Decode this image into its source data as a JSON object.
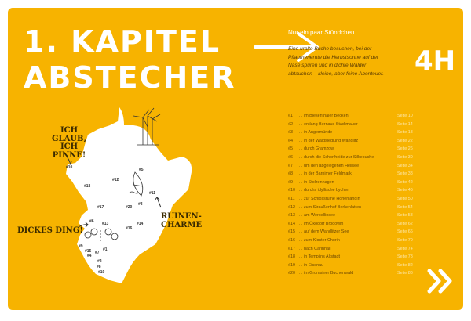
{
  "chapter": {
    "title_line1": "1. KAPITEL",
    "title_line2": "ABSTECHER"
  },
  "header": {
    "subtitle": "Nur ein paar Stündchen",
    "intro": "Eine uralte Buche besuchen, bei der Pflaumenernte die Herbstsonne auf der Nase spüren und in dichte Wälder abtauchen – kleine, aber feine Abenteuer.",
    "duration": "4H"
  },
  "colors": {
    "background": "#f7b300",
    "text": "#ffffff",
    "list_text": "#6b4700"
  },
  "map": {
    "callouts": {
      "pin": "ICH GLAUB, ICH PINNE!",
      "big": "DICKES DING!",
      "ruins": "RUINEN-CHARME"
    },
    "markers": [
      "#10",
      "#18",
      "#12",
      "#5",
      "#11",
      "#17",
      "#20",
      "#3",
      "#6",
      "#13",
      "#14",
      "#16",
      "#9",
      "#15",
      "#7",
      "#1",
      "#4",
      "#2",
      "#8",
      "#19"
    ]
  },
  "list": [
    {
      "num": "#1",
      "text": "... im Biesenthaler Becken",
      "page": "Seite 10"
    },
    {
      "num": "#2",
      "text": "... entlang Bernaus Stadtmauer",
      "page": "Seite 14"
    },
    {
      "num": "#3",
      "text": "... in Angermünde",
      "page": "Seite 18"
    },
    {
      "num": "#4",
      "text": "... in der Waldsiedlung Wandlitz",
      "page": "Seite 22"
    },
    {
      "num": "#5",
      "text": "... durch Gramzow",
      "page": "Seite 26"
    },
    {
      "num": "#6",
      "text": "... durch die Schorfheide zur Silkebuche",
      "page": "Seite 30"
    },
    {
      "num": "#7",
      "text": "... um den abgelegenen Hellsee",
      "page": "Seite 34"
    },
    {
      "num": "#8",
      "text": "... in der Barnimer Feldmark",
      "page": "Seite 38"
    },
    {
      "num": "#9",
      "text": "... in Stolzenhagen",
      "page": "Seite 42"
    },
    {
      "num": "#10",
      "text": "... durchs idyllische Lychen",
      "page": "Seite 46"
    },
    {
      "num": "#11",
      "text": "... zur Schlossruine Hohenlandin",
      "page": "Seite 50"
    },
    {
      "num": "#12",
      "text": "... zum Straußenhof Berkenlatten",
      "page": "Seite 54"
    },
    {
      "num": "#13",
      "text": "... am Werbellinsee",
      "page": "Seite 58"
    },
    {
      "num": "#14",
      "text": "... im Ökodorf Brodowin",
      "page": "Seite 62"
    },
    {
      "num": "#15",
      "text": "... auf dem Wandlitzer See",
      "page": "Seite 66"
    },
    {
      "num": "#16",
      "text": "... zum Kloster Chorin",
      "page": "Seite 70"
    },
    {
      "num": "#17",
      "text": "... nach Carinhall",
      "page": "Seite 74"
    },
    {
      "num": "#18",
      "text": "... in Templins Altstadt",
      "page": "Seite 78"
    },
    {
      "num": "#19",
      "text": "... in Eisenau",
      "page": "Seite 82"
    },
    {
      "num": "#20",
      "text": "... im Grumsiner Buchenwald",
      "page": "Seite 86"
    }
  ],
  "icons": {
    "arrow": "arrow-right-icon",
    "next": "double-chevron-right-icon"
  }
}
